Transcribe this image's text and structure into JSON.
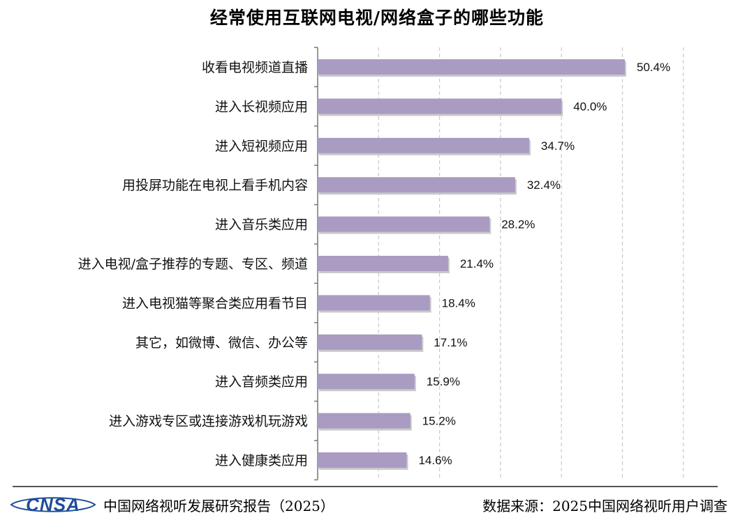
{
  "chart_data": {
    "type": "bar",
    "orientation": "horizontal",
    "title": "经常使用互联网电视/网络盒子的哪些功能",
    "categories": [
      "收看电视频道直播",
      "进入长视频应用",
      "进入短视频应用",
      "用投屏功能在电视上看手机内容",
      "进入音乐类应用",
      "进入电视/盒子推荐的专题、专区、频道",
      "进入电视猫等聚合类应用看节目",
      "其它，如微博、微信、办公等",
      "进入音频类应用",
      "进入游戏专区或连接游戏机玩游戏",
      "进入健康类应用"
    ],
    "values": [
      50.4,
      40.0,
      34.7,
      32.4,
      28.2,
      21.4,
      18.4,
      17.1,
      15.9,
      15.2,
      14.6
    ],
    "value_labels": [
      "50.4%",
      "40.0%",
      "34.7%",
      "32.4%",
      "28.2%",
      "21.4%",
      "18.4%",
      "17.1%",
      "15.9%",
      "15.2%",
      "14.6%"
    ],
    "xlim": [
      0,
      60
    ],
    "grid": "vertical dashed",
    "bar_color": "#a99bc2",
    "xlabel": "",
    "ylabel": ""
  },
  "footer": {
    "logo_text": "CNSA",
    "report_name": "中国网络视听发展研究报告（2025）",
    "data_source": "数据来源：2025中国网络视听用户调查"
  },
  "colors": {
    "bar": "#a99bc2",
    "logo_blue": "#1e4c9a",
    "grid": "#c8c8c8"
  }
}
